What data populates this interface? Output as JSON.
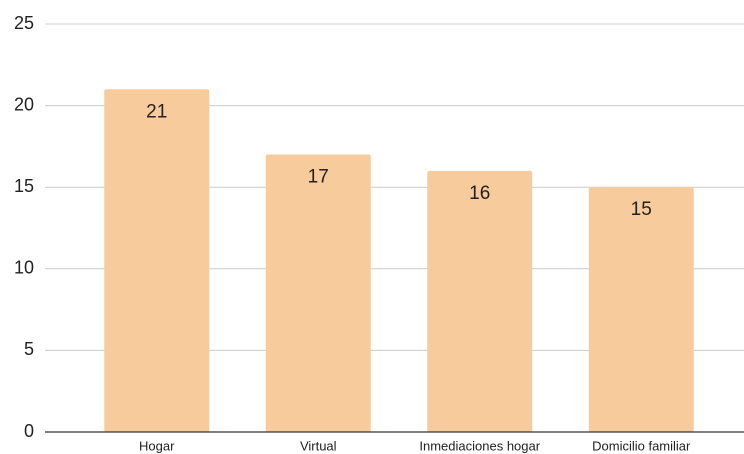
{
  "chart_data": {
    "type": "bar",
    "categories": [
      "Hogar",
      "Virtual",
      "Inmediaciones hogar",
      "Domicilio familiar"
    ],
    "values": [
      21,
      17,
      16,
      15
    ],
    "color": "#f8cb9c",
    "ylim": [
      0,
      25
    ],
    "yticks": [
      0,
      5,
      10,
      15,
      20,
      25
    ],
    "grid": true
  }
}
